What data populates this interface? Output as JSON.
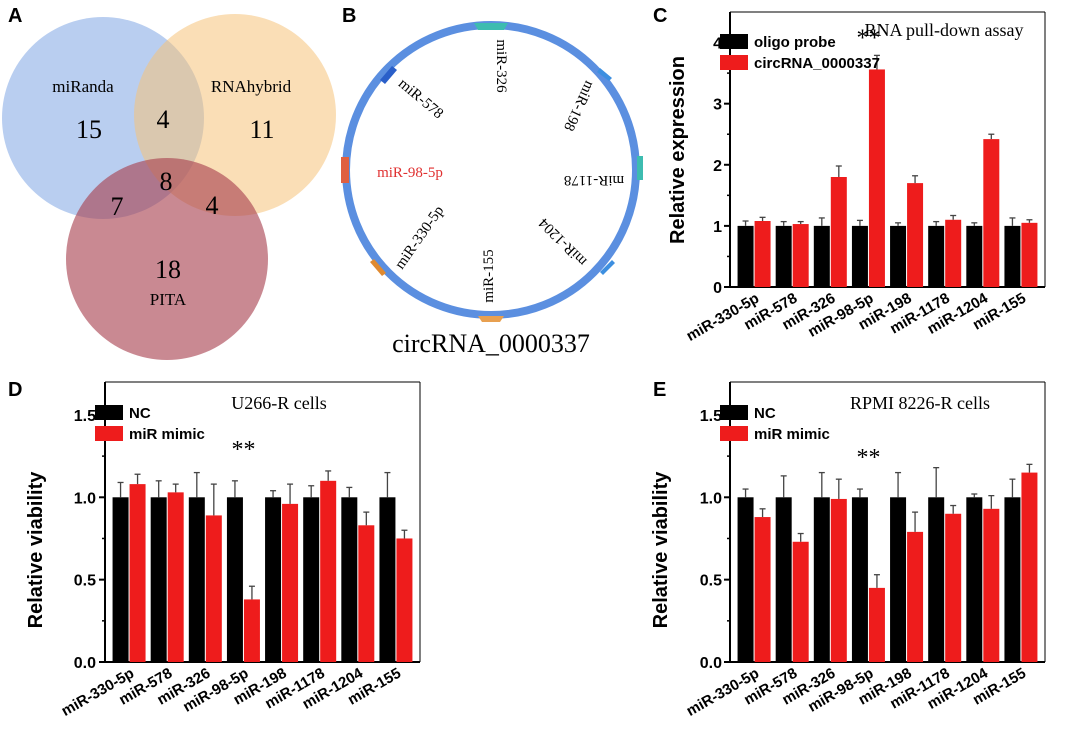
{
  "panels": {
    "a": "A",
    "b": "B",
    "c": "C",
    "d": "D",
    "e": "E"
  },
  "venn": {
    "sets": [
      {
        "name": "miRanda",
        "color": "#7fa6e3"
      },
      {
        "name": "RNAhybrid",
        "color": "#f5c27a"
      },
      {
        "name": "PITA",
        "color": "#a8404f"
      }
    ],
    "counts": {
      "miRanda_only": "15",
      "miRanda_RNAhybrid": "4",
      "RNAhybrid_only": "11",
      "all_three": "8",
      "miRanda_PITA": "7",
      "RNAhybrid_PITA": "4",
      "PITA_only": "18"
    }
  },
  "circ": {
    "name": "circRNA_0000337",
    "ring_color": "#5b8fe0",
    "highlight_color": "#e03030",
    "mirnas": [
      "miR-326",
      "miR-198",
      "miR-1178",
      "miR-1204",
      "miR-155",
      "miR-330-5p",
      "miR-98-5p",
      "miR-578"
    ],
    "highlighted": "miR-98-5p"
  },
  "chart_data": [
    {
      "id": "C",
      "type": "bar",
      "title": "RNA pull-down assay",
      "xlabel": "",
      "ylabel": "Relative expression",
      "ylim": [
        0,
        4.5
      ],
      "yticks": [
        0,
        1,
        2,
        3,
        4
      ],
      "categories": [
        "miR-330-5p",
        "miR-578",
        "miR-326",
        "miR-98-5p",
        "miR-198",
        "miR-1178",
        "miR-1204",
        "miR-155"
      ],
      "series": [
        {
          "name": "oligo probe",
          "color": "#000000",
          "values": [
            1.0,
            1.0,
            1.0,
            1.0,
            1.0,
            1.0,
            1.0,
            1.0
          ],
          "errors": [
            0.08,
            0.07,
            0.13,
            0.09,
            0.05,
            0.07,
            0.05,
            0.13
          ]
        },
        {
          "name": "circRNA_0000337",
          "color": "#ee1c1c",
          "values": [
            1.08,
            1.03,
            1.8,
            3.56,
            1.7,
            1.1,
            2.42,
            1.05
          ],
          "errors": [
            0.06,
            0.04,
            0.18,
            0.23,
            0.12,
            0.07,
            0.08,
            0.05
          ]
        }
      ],
      "annotations": [
        {
          "text": "**",
          "category": "miR-98-5p"
        }
      ]
    },
    {
      "id": "D",
      "type": "bar",
      "title": "U266-R cells",
      "xlabel": "",
      "ylabel": "Relative viability",
      "ylim": [
        0,
        1.7
      ],
      "yticks": [
        "0.0",
        "0.5",
        "1.0",
        "1.5"
      ],
      "categories": [
        "miR-330-5p",
        "miR-578",
        "miR-326",
        "miR-98-5p",
        "miR-198",
        "miR-1178",
        "miR-1204",
        "miR-155"
      ],
      "series": [
        {
          "name": "NC",
          "color": "#000000",
          "values": [
            1.0,
            1.0,
            1.0,
            1.0,
            1.0,
            1.0,
            1.0,
            1.0
          ],
          "errors": [
            0.09,
            0.1,
            0.15,
            0.1,
            0.04,
            0.07,
            0.06,
            0.15
          ]
        },
        {
          "name": "miR mimic",
          "color": "#ee1c1c",
          "values": [
            1.08,
            1.03,
            0.89,
            0.38,
            0.96,
            1.1,
            0.83,
            0.75
          ],
          "errors": [
            0.06,
            0.05,
            0.19,
            0.08,
            0.12,
            0.06,
            0.08,
            0.05
          ]
        }
      ],
      "annotations": [
        {
          "text": "**",
          "category": "miR-98-5p"
        }
      ]
    },
    {
      "id": "E",
      "type": "bar",
      "title": "RPMI 8226-R cells",
      "xlabel": "",
      "ylabel": "Relative viability",
      "ylim": [
        0,
        1.7
      ],
      "yticks": [
        "0.0",
        "0.5",
        "1.0",
        "1.5"
      ],
      "categories": [
        "miR-330-5p",
        "miR-578",
        "miR-326",
        "miR-98-5p",
        "miR-198",
        "miR-1178",
        "miR-1204",
        "miR-155"
      ],
      "series": [
        {
          "name": "NC",
          "color": "#000000",
          "values": [
            1.0,
            1.0,
            1.0,
            1.0,
            1.0,
            1.0,
            1.0,
            1.0
          ],
          "errors": [
            0.05,
            0.13,
            0.15,
            0.05,
            0.15,
            0.18,
            0.02,
            0.11
          ]
        },
        {
          "name": "miR mimic",
          "color": "#ee1c1c",
          "values": [
            0.88,
            0.73,
            0.99,
            0.45,
            0.79,
            0.9,
            0.93,
            1.15
          ],
          "errors": [
            0.05,
            0.05,
            0.12,
            0.08,
            0.12,
            0.05,
            0.08,
            0.05
          ]
        }
      ],
      "annotations": [
        {
          "text": "**",
          "category": "miR-98-5p"
        }
      ]
    }
  ]
}
